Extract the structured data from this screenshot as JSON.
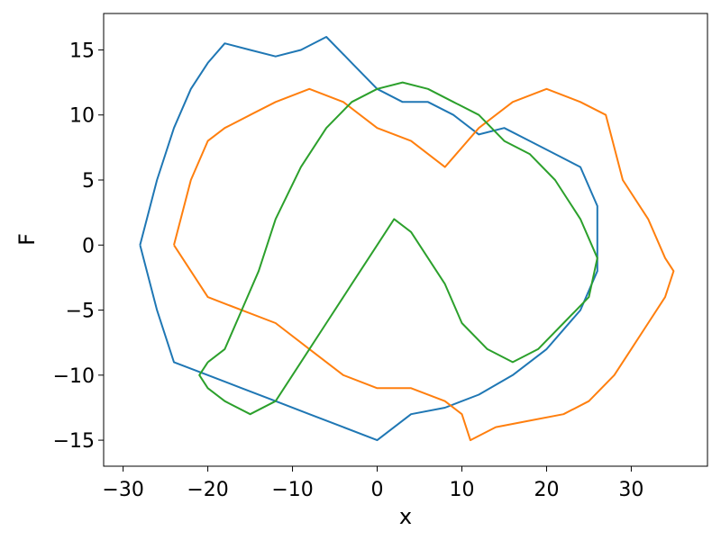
{
  "chart_data": {
    "type": "line",
    "xlabel": "x",
    "ylabel": "F",
    "xlim": [
      -32.3,
      39.0
    ],
    "ylim": [
      -17.0,
      17.8
    ],
    "x_ticks": [
      -30,
      -20,
      -10,
      0,
      10,
      20,
      30
    ],
    "y_ticks": [
      -15,
      -10,
      -5,
      0,
      5,
      10,
      15
    ],
    "x_tick_labels": [
      "−30",
      "−20",
      "−10",
      "0",
      "10",
      "20",
      "30"
    ],
    "y_tick_labels": [
      "−15",
      "−10",
      "−5",
      "0",
      "5",
      "10",
      "15"
    ],
    "grid": false,
    "legend": "none",
    "series": [
      {
        "color": "#1f77b4",
        "x": [
          -28,
          -26,
          -24,
          -22,
          -20,
          -18,
          -15,
          -12,
          -9,
          -6,
          -3,
          0,
          3,
          6,
          9,
          12,
          15,
          18,
          21,
          24,
          26,
          26,
          24,
          20,
          16,
          12,
          8,
          4,
          0,
          -4,
          -8,
          -12,
          -16,
          -20,
          -24,
          -26,
          -28
        ],
        "y": [
          0,
          5,
          9,
          12,
          14,
          15.5,
          15,
          14.5,
          15,
          16,
          14,
          12,
          11,
          11,
          10,
          8.5,
          9,
          8,
          7,
          6,
          3,
          -2,
          -5,
          -8,
          -10,
          -11.5,
          -12.5,
          -13,
          -15,
          -14,
          -13,
          -12,
          -11,
          -10,
          -9,
          -5,
          0
        ]
      },
      {
        "color": "#ff7f0e",
        "x": [
          -24,
          -22,
          -20,
          -18,
          -15,
          -12,
          -8,
          -4,
          0,
          4,
          8,
          12,
          16,
          20,
          24,
          27,
          29,
          32,
          34,
          35,
          34,
          32,
          30,
          28,
          25,
          22,
          18,
          14,
          11,
          10,
          8,
          4,
          0,
          -4,
          -8,
          -12,
          -16,
          -20,
          -22,
          -24
        ],
        "y": [
          0,
          5,
          8,
          9,
          10,
          11,
          12,
          11,
          9,
          8,
          6,
          9,
          11,
          12,
          11,
          10,
          5,
          2,
          -1,
          -2,
          -4,
          -6,
          -8,
          -10,
          -12,
          -13,
          -13.5,
          -14,
          -15,
          -13,
          -12,
          -11,
          -11,
          -10,
          -8,
          -6,
          -5,
          -4,
          -2,
          0
        ]
      },
      {
        "color": "#2ca02c",
        "x": [
          -20,
          -18,
          -16,
          -14,
          -12,
          -9,
          -6,
          -3,
          0,
          3,
          6,
          9,
          12,
          15,
          18,
          21,
          24,
          26,
          25,
          22,
          19,
          16,
          13,
          10,
          8,
          6,
          4,
          2,
          0,
          -3,
          -6,
          -9,
          -12,
          -15,
          -18,
          -20,
          -21,
          -20
        ],
        "y": [
          -9,
          -8,
          -5,
          -2,
          2,
          6,
          9,
          11,
          12,
          12.5,
          12,
          11,
          10,
          8,
          7,
          5,
          2,
          -1,
          -4,
          -6,
          -8,
          -9,
          -8,
          -6,
          -3,
          -1,
          1,
          2,
          0,
          -3,
          -6,
          -9,
          -12,
          -13,
          -12,
          -11,
          -10,
          -9
        ]
      }
    ]
  }
}
